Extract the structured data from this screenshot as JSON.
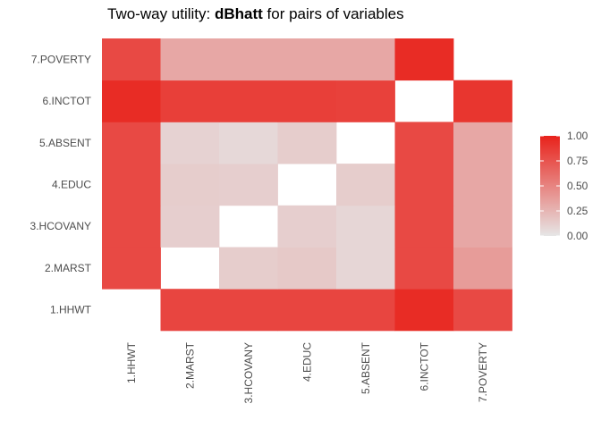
{
  "chart_data": {
    "type": "heatmap",
    "title_prefix": "Two-way utility: ",
    "title_bold": "dBhatt",
    "title_suffix": " for pairs of variables",
    "x_labels": [
      "1.HHWT",
      "2.MARST",
      "3.HCOVANY",
      "4.EDUC",
      "5.ABSENT",
      "6.INCTOT",
      "7.POVERTY"
    ],
    "y_labels": [
      "1.HHWT",
      "2.MARST",
      "3.HCOVANY",
      "4.EDUC",
      "5.ABSENT",
      "6.INCTOT",
      "7.POVERTY"
    ],
    "values": [
      [
        null,
        0.82,
        0.82,
        0.82,
        0.82,
        0.95,
        0.8
      ],
      [
        0.8,
        null,
        0.13,
        0.15,
        0.08,
        0.8,
        0.38
      ],
      [
        0.8,
        0.12,
        null,
        0.12,
        0.08,
        0.8,
        0.32
      ],
      [
        0.8,
        0.13,
        0.12,
        null,
        0.13,
        0.8,
        0.32
      ],
      [
        0.8,
        0.1,
        0.07,
        0.13,
        null,
        0.8,
        0.32
      ],
      [
        0.95,
        0.85,
        0.85,
        0.85,
        0.84,
        null,
        0.9
      ],
      [
        0.8,
        0.32,
        0.32,
        0.32,
        0.32,
        0.95,
        null
      ]
    ],
    "color_low": "#e6e6e6",
    "color_high": "#e8221b",
    "legend_ticks": [
      "0.00",
      "0.25",
      "0.50",
      "0.75",
      "1.00"
    ],
    "legend_tick_values": [
      0,
      0.25,
      0.5,
      0.75,
      1.0
    ],
    "limits": [
      0,
      1
    ]
  }
}
